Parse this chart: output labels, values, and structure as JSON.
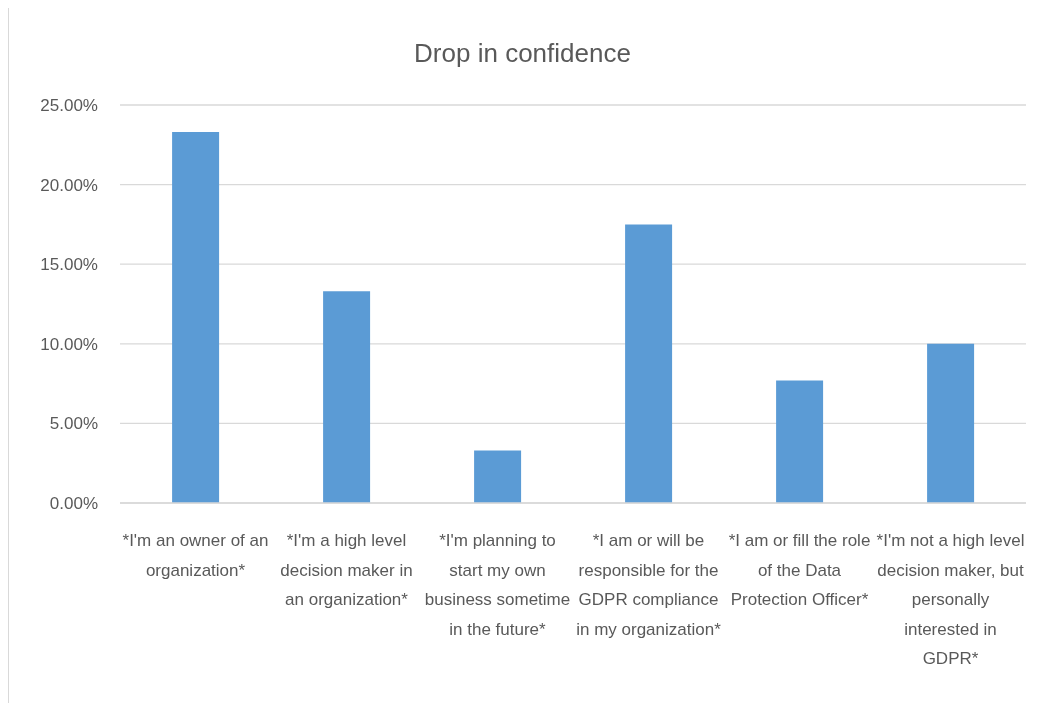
{
  "chart_data": {
    "type": "bar",
    "title": "Drop in confidence",
    "categories": [
      "*I'm an owner of an organization*",
      "*I'm a high level decision maker in an organization*",
      "*I'm planning to start my own business sometime in the future*",
      "*I am or will be responsible for the GDPR compliance in my organization*",
      "*I am or fill the role of the Data Protection Officer*",
      "*I'm not a high level decision maker, but personally interested in GDPR*"
    ],
    "values": [
      23.3,
      13.3,
      3.3,
      17.5,
      7.7,
      10.0
    ],
    "color": "#5b9bd5",
    "ylim": [
      0,
      25
    ],
    "yticks": [
      {
        "value": 0,
        "label": "0.00%"
      },
      {
        "value": 5,
        "label": "5.00%"
      },
      {
        "value": 10,
        "label": "10.00%"
      },
      {
        "value": 15,
        "label": "15.00%"
      },
      {
        "value": 20,
        "label": "20.00%"
      },
      {
        "value": 25,
        "label": "25.00%"
      }
    ],
    "grid": "y"
  }
}
